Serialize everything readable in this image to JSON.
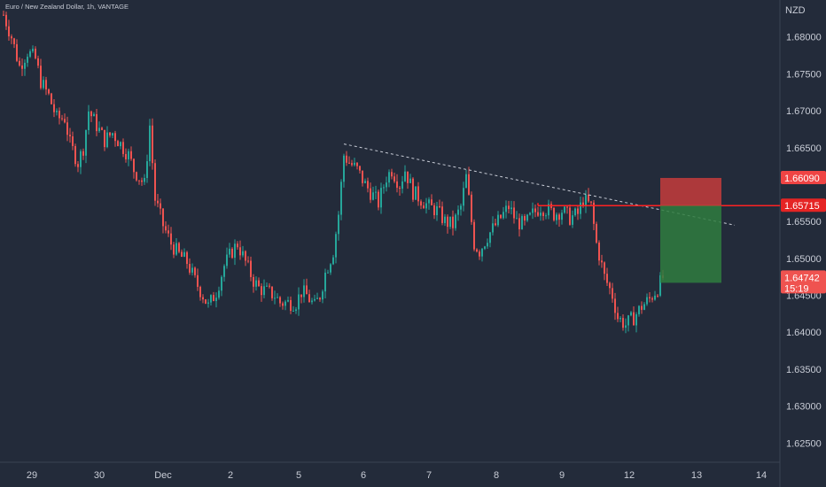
{
  "chart_data": {
    "type": "candlestick",
    "title": "Euro / New Zealand Dollar, 1h, VANTAGE",
    "currency": "NZD",
    "x_ticks": [
      "29",
      "30",
      "Dec",
      "2",
      "5",
      "6",
      "7",
      "8",
      "9",
      "12",
      "13",
      "14"
    ],
    "y_ticks": [
      "1.68000",
      "1.67500",
      "1.67000",
      "1.66500",
      "1.65500",
      "1.65000",
      "1.64500",
      "1.64000",
      "1.63500",
      "1.63000",
      "1.62500"
    ],
    "ylim": [
      1.62,
      1.685
    ],
    "series": [
      {
        "kind": "price_path",
        "points": [
          [
            0,
            1.683
          ],
          [
            3,
            1.68
          ],
          [
            6,
            1.676
          ],
          [
            9,
            1.678
          ],
          [
            12,
            1.677
          ],
          [
            14,
            1.674
          ],
          [
            17,
            1.672
          ],
          [
            20,
            1.669
          ],
          [
            23,
            1.669
          ],
          [
            25,
            1.6655
          ],
          [
            28,
            1.663
          ],
          [
            30,
            1.665
          ],
          [
            32,
            1.67
          ],
          [
            35,
            1.668
          ],
          [
            38,
            1.666
          ],
          [
            41,
            1.667
          ],
          [
            44,
            1.6655
          ],
          [
            47,
            1.664
          ],
          [
            49,
            1.662
          ],
          [
            51,
            1.661
          ],
          [
            53,
            1.66
          ],
          [
            55,
            1.668
          ],
          [
            57,
            1.658
          ],
          [
            60,
            1.6545
          ],
          [
            63,
            1.652
          ],
          [
            66,
            1.6505
          ],
          [
            69,
            1.6495
          ],
          [
            72,
            1.647
          ],
          [
            75,
            1.645
          ],
          [
            77,
            1.6435
          ],
          [
            80,
            1.6455
          ],
          [
            83,
            1.649
          ],
          [
            86,
            1.651
          ],
          [
            88,
            1.652
          ],
          [
            91,
            1.6495
          ],
          [
            94,
            1.647
          ],
          [
            96,
            1.646
          ],
          [
            99,
            1.6455
          ],
          [
            102,
            1.645
          ],
          [
            104,
            1.644
          ],
          [
            107,
            1.644
          ],
          [
            110,
            1.644
          ],
          [
            112,
            1.6455
          ],
          [
            114,
            1.645
          ],
          [
            117,
            1.6435
          ],
          [
            119,
            1.645
          ],
          [
            121,
            1.648
          ],
          [
            124,
            1.651
          ],
          [
            126,
            1.656
          ],
          [
            128,
            1.664
          ],
          [
            130,
            1.663
          ],
          [
            133,
            1.662
          ],
          [
            136,
            1.66
          ],
          [
            139,
            1.6585
          ],
          [
            141,
            1.6575
          ],
          [
            144,
            1.661
          ],
          [
            146,
            1.662
          ],
          [
            149,
            1.66
          ],
          [
            151,
            1.662
          ],
          [
            154,
            1.659
          ],
          [
            157,
            1.658
          ],
          [
            160,
            1.657
          ],
          [
            163,
            1.6565
          ],
          [
            166,
            1.655
          ],
          [
            169,
            1.6545
          ],
          [
            172,
            1.657
          ],
          [
            174,
            1.661
          ],
          [
            177,
            1.652
          ],
          [
            179,
            1.651
          ],
          [
            182,
            1.653
          ],
          [
            185,
            1.6545
          ],
          [
            188,
            1.656
          ],
          [
            190,
            1.657
          ],
          [
            193,
            1.655
          ],
          [
            196,
            1.6545
          ],
          [
            199,
            1.656
          ],
          [
            202,
            1.657
          ],
          [
            205,
            1.6565
          ],
          [
            207,
            1.656
          ],
          [
            210,
            1.6565
          ],
          [
            213,
            1.6555
          ],
          [
            216,
            1.656
          ],
          [
            218,
            1.658
          ],
          [
            221,
            1.657
          ],
          [
            223,
            1.652
          ],
          [
            226,
            1.6475
          ],
          [
            229,
            1.645
          ],
          [
            231,
            1.642
          ],
          [
            234,
            1.641
          ],
          [
            237,
            1.642
          ],
          [
            240,
            1.6435
          ],
          [
            243,
            1.6445
          ],
          [
            246,
            1.646
          ],
          [
            248,
            1.6474
          ]
        ]
      }
    ],
    "trendline": {
      "from": [
        128,
        1.6655
      ],
      "to": [
        275,
        1.6545
      ]
    },
    "resistance": {
      "from": [
        201,
        1.65715
      ],
      "value": 1.65715
    },
    "position": {
      "type": "short",
      "stop": 1.6609,
      "entry": 1.65715,
      "target": 1.6467,
      "start_index": 247,
      "end_index": 270
    },
    "price_labels": [
      {
        "value": "1.66090",
        "price": 1.6609,
        "color": "#ef4444"
      },
      {
        "value": "1.65715",
        "price": 1.65715,
        "color": "#e52424"
      },
      {
        "value": "1.64742",
        "price": 1.64742,
        "color": "#ef5350",
        "timer": "15:19"
      }
    ],
    "colors": {
      "background": "#232b3a",
      "up": "#26a69a",
      "down": "#ef5350",
      "resistance": "#ff2222",
      "stop_zone": "#c63c3c",
      "target_zone": "#2f7d3f",
      "trendline": "#c8ccd6"
    }
  }
}
